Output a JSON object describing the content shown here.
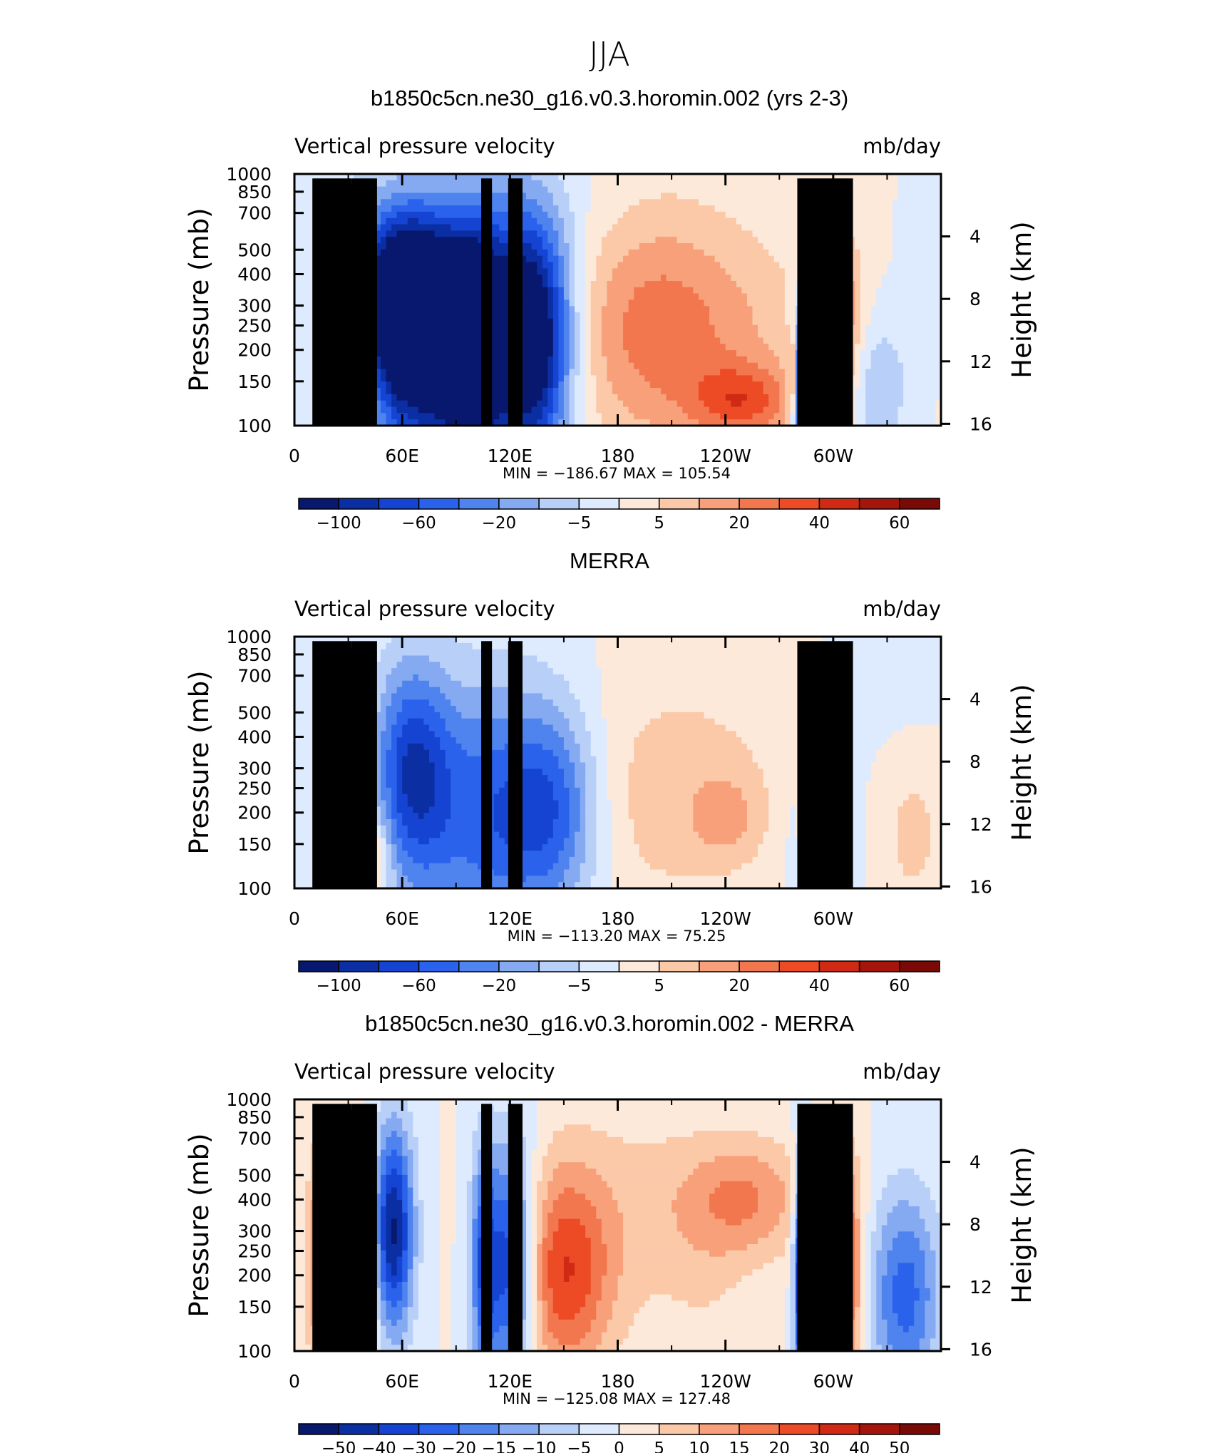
{
  "figure_title": "JJA",
  "chart_data": [
    {
      "type": "heatmap",
      "title": "b1850c5cn.ne30_g16.v0.3.horomin.002 (yrs 2-3)",
      "subtitle_left": "Vertical pressure velocity",
      "subtitle_right": "mb/day",
      "ylabel": "Pressure (mb)",
      "ylabel_right": "Height (km)",
      "x_ticks": [
        "0",
        "60E",
        "120E",
        "180",
        "120W",
        "60W"
      ],
      "x_tick_lon": [
        0,
        60,
        120,
        180,
        240,
        300
      ],
      "xlim": [
        0,
        360
      ],
      "y_ticks": [
        "100",
        "150",
        "200",
        "250",
        "300",
        "400",
        "500",
        "700",
        "850",
        "1000"
      ],
      "y_tick_p": [
        100,
        150,
        200,
        250,
        300,
        400,
        500,
        700,
        850,
        1000
      ],
      "ylim": [
        1000,
        100
      ],
      "y_scale": "log",
      "right_ticks": [
        "16",
        "12",
        "8",
        "4"
      ],
      "right_tick_km": [
        16,
        12,
        8,
        4
      ],
      "stats": "MIN = −186.67   MAX = 105.54",
      "colorbar_labels": [
        "−100",
        "−60",
        "−20",
        "−5",
        "5",
        "20",
        "40",
        "60"
      ],
      "colorbar_label_at_box": [
        1,
        3,
        5,
        7,
        9,
        11,
        13,
        15
      ],
      "scale": 100,
      "features": [
        {
          "lon": 62,
          "p": 320,
          "w": 20,
          "h": 0.55,
          "v": -110
        },
        {
          "lon": 60,
          "p": 450,
          "w": 30,
          "h": 0.9,
          "v": -55
        },
        {
          "lon": 115,
          "p": 420,
          "w": 24,
          "h": 0.9,
          "v": -70
        },
        {
          "lon": 135,
          "p": 450,
          "w": 14,
          "h": 0.8,
          "v": -75
        },
        {
          "lon": 100,
          "p": 450,
          "w": 10,
          "h": 0.7,
          "v": -50
        },
        {
          "lon": 85,
          "p": 600,
          "w": 20,
          "h": 0.8,
          "v": -35
        },
        {
          "lon": 215,
          "p": 450,
          "w": 50,
          "h": 0.8,
          "v": 32
        },
        {
          "lon": 250,
          "p": 800,
          "w": 20,
          "h": 0.25,
          "v": 42
        },
        {
          "lon": 198,
          "p": 350,
          "w": 30,
          "h": 0.8,
          "v": 15
        },
        {
          "lon": 12,
          "p": 450,
          "w": 8,
          "h": 0.6,
          "v": 12
        },
        {
          "lon": 45,
          "p": 450,
          "w": 5,
          "h": 0.7,
          "v": 22
        },
        {
          "lon": 32,
          "p": 800,
          "w": 6,
          "h": 0.3,
          "v": -40
        },
        {
          "lon": 282,
          "p": 700,
          "w": 4,
          "h": 0.5,
          "v": -90
        },
        {
          "lon": 292,
          "p": 650,
          "w": 6,
          "h": 0.5,
          "v": -50
        },
        {
          "lon": 278,
          "p": 600,
          "w": 2,
          "h": 0.3,
          "v": 45
        },
        {
          "lon": 305,
          "p": 320,
          "w": 8,
          "h": 0.5,
          "v": 28
        },
        {
          "lon": 300,
          "p": 650,
          "w": 12,
          "h": 0.5,
          "v": 12
        },
        {
          "lon": 325,
          "p": 750,
          "w": 10,
          "h": 0.5,
          "v": -28
        },
        {
          "lon": 345,
          "p": 350,
          "w": 6,
          "h": 0.6,
          "v": -10
        },
        {
          "lon": 170,
          "p": 150,
          "w": 20,
          "h": 0.3,
          "v": -3
        }
      ]
    },
    {
      "type": "heatmap",
      "title": "MERRA",
      "subtitle_left": "Vertical pressure velocity",
      "subtitle_right": "mb/day",
      "ylabel": "Pressure (mb)",
      "ylabel_right": "Height (km)",
      "x_ticks": [
        "0",
        "60E",
        "120E",
        "180",
        "120W",
        "60W"
      ],
      "x_tick_lon": [
        0,
        60,
        120,
        180,
        240,
        300
      ],
      "xlim": [
        0,
        360
      ],
      "y_ticks": [
        "100",
        "150",
        "200",
        "250",
        "300",
        "400",
        "500",
        "700",
        "850",
        "1000"
      ],
      "y_tick_p": [
        100,
        150,
        200,
        250,
        300,
        400,
        500,
        700,
        850,
        1000
      ],
      "ylim": [
        1000,
        100
      ],
      "y_scale": "log",
      "right_ticks": [
        "16",
        "12",
        "8",
        "4"
      ],
      "right_tick_km": [
        16,
        12,
        8,
        4
      ],
      "stats": "MIN = −113.20   MAX =   75.25",
      "colorbar_labels": [
        "−100",
        "−60",
        "−20",
        "−5",
        "5",
        "20",
        "40",
        "60"
      ],
      "colorbar_label_at_box": [
        1,
        3,
        5,
        7,
        9,
        11,
        13,
        15
      ],
      "scale": 100,
      "features": [
        {
          "lon": 65,
          "p": 330,
          "w": 15,
          "h": 0.7,
          "v": -55
        },
        {
          "lon": 80,
          "p": 500,
          "w": 30,
          "h": 0.9,
          "v": -35
        },
        {
          "lon": 145,
          "p": 480,
          "w": 18,
          "h": 0.7,
          "v": -55
        },
        {
          "lon": 115,
          "p": 500,
          "w": 20,
          "h": 0.9,
          "v": -35
        },
        {
          "lon": 20,
          "p": 300,
          "w": 6,
          "h": 0.4,
          "v": -35
        },
        {
          "lon": 215,
          "p": 420,
          "w": 45,
          "h": 0.8,
          "v": 20
        },
        {
          "lon": 240,
          "p": 520,
          "w": 12,
          "h": 0.25,
          "v": 20
        },
        {
          "lon": 40,
          "p": 620,
          "w": 15,
          "h": 0.8,
          "v": 15
        },
        {
          "lon": 45,
          "p": 750,
          "w": 6,
          "h": 0.25,
          "v": 25
        },
        {
          "lon": 285,
          "p": 350,
          "w": 3,
          "h": 0.8,
          "v": 40
        },
        {
          "lon": 295,
          "p": 650,
          "w": 12,
          "h": 0.6,
          "v": -32
        },
        {
          "lon": 345,
          "p": 600,
          "w": 15,
          "h": 0.7,
          "v": 15
        },
        {
          "lon": 330,
          "p": 200,
          "w": 30,
          "h": 0.4,
          "v": -6
        }
      ]
    },
    {
      "type": "heatmap",
      "title": "b1850c5cn.ne30_g16.v0.3.horomin.002 - MERRA",
      "subtitle_left": "Vertical pressure velocity",
      "subtitle_right": "mb/day",
      "ylabel": "Pressure (mb)",
      "ylabel_right": "Height (km)",
      "x_ticks": [
        "0",
        "60E",
        "120E",
        "180",
        "120W",
        "60W"
      ],
      "x_tick_lon": [
        0,
        60,
        120,
        180,
        240,
        300
      ],
      "xlim": [
        0,
        360
      ],
      "y_ticks": [
        "100",
        "150",
        "200",
        "250",
        "300",
        "400",
        "500",
        "700",
        "850",
        "1000"
      ],
      "y_tick_p": [
        100,
        150,
        200,
        250,
        300,
        400,
        500,
        700,
        850,
        1000
      ],
      "ylim": [
        1000,
        100
      ],
      "y_scale": "log",
      "right_ticks": [
        "16",
        "12",
        "8",
        "4"
      ],
      "right_tick_km": [
        16,
        12,
        8,
        4
      ],
      "stats": "MIN = −125.08   MAX = 127.48",
      "colorbar_labels": [
        "−50",
        "−40",
        "−30",
        "−20",
        "−15",
        "−10",
        "−5",
        "0",
        "5",
        "10",
        "15",
        "20",
        "30",
        "40",
        "50"
      ],
      "colorbar_label_at_box": [
        1,
        2,
        3,
        4,
        5,
        6,
        7,
        8,
        9,
        10,
        11,
        12,
        13,
        14,
        15
      ],
      "scale": 50,
      "features": [
        {
          "lon": 55,
          "p": 330,
          "w": 8,
          "h": 0.7,
          "v": -45
        },
        {
          "lon": 120,
          "p": 450,
          "w": 10,
          "h": 0.8,
          "v": -40
        },
        {
          "lon": 105,
          "p": 450,
          "w": 5,
          "h": 0.8,
          "v": -25
        },
        {
          "lon": 150,
          "p": 500,
          "w": 18,
          "h": 0.7,
          "v": 28
        },
        {
          "lon": 190,
          "p": 300,
          "w": 40,
          "h": 0.8,
          "v": 8
        },
        {
          "lon": 250,
          "p": 250,
          "w": 25,
          "h": 0.4,
          "v": 18
        },
        {
          "lon": 15,
          "p": 450,
          "w": 6,
          "h": 0.8,
          "v": 22
        },
        {
          "lon": 282,
          "p": 500,
          "w": 3,
          "h": 0.8,
          "v": -40
        },
        {
          "lon": 305,
          "p": 500,
          "w": 8,
          "h": 0.8,
          "v": 32
        },
        {
          "lon": 340,
          "p": 600,
          "w": 14,
          "h": 0.7,
          "v": -28
        },
        {
          "lon": 230,
          "p": 550,
          "w": 15,
          "h": 0.4,
          "v": 3
        },
        {
          "lon": 40,
          "p": 500,
          "w": 6,
          "h": 0.8,
          "v": 12
        }
      ]
    }
  ]
}
